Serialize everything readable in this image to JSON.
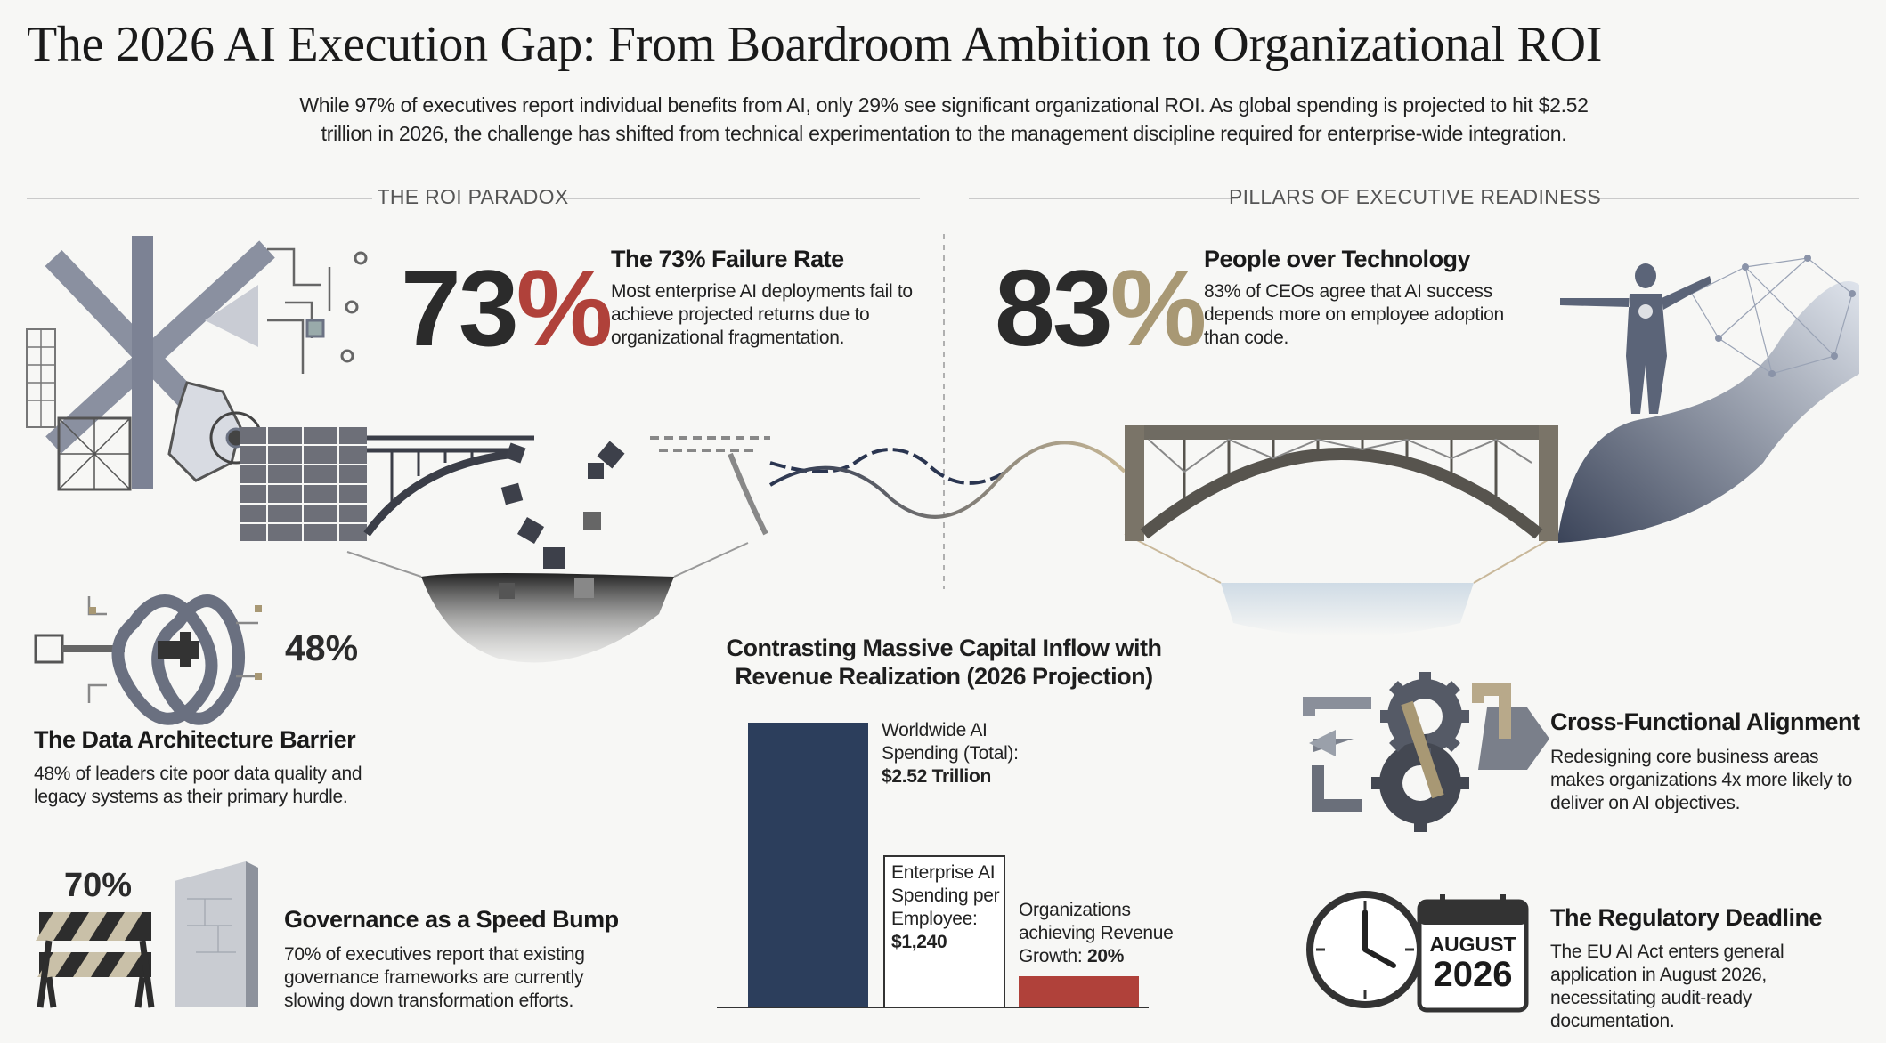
{
  "header": {
    "title": "The 2026 AI Execution Gap: From Boardroom Ambition to Organizational ROI",
    "subtitle": "While 97% of executives report individual benefits from AI, only 29% see significant organizational ROI. As global spending is projected to hit $2.52 trillion in 2026, the challenge has shifted from technical experimentation to the management discipline required for enterprise-wide integration."
  },
  "sections": [
    "THE ROI PARADOX",
    "PILLARS OF EXECUTIVE READINESS"
  ],
  "failure": {
    "number": "73",
    "unit": "%",
    "title": "The 73% Failure Rate",
    "text": "Most enterprise AI deployments fail to achieve projected returns due to organizational fragmentation."
  },
  "people": {
    "number": "83",
    "unit": "%",
    "title": "People over Technology",
    "text": "83% of CEOs agree that AI success depends more on employee adoption than code."
  },
  "data_barrier": {
    "stat": "48%",
    "title": "The Data Architecture Barrier",
    "text": "48% of leaders cite poor data quality and legacy systems as their primary hurdle."
  },
  "governance": {
    "stat": "70%",
    "title": "Governance as a Speed Bump",
    "text": "70% of executives report that existing governance frameworks are currently slowing down transformation efforts."
  },
  "chart": {
    "title": "Contrasting Massive Capital Inflow with Revenue Realization (2026 Projection)",
    "bars": [
      {
        "label": "Worldwide AI Spending (Total):",
        "value": "$2.52 Trillion"
      },
      {
        "label": "Enterprise AI Spending per Employee:",
        "value": "$1,240"
      },
      {
        "label": "Organizations achieving Revenue Growth:",
        "value": "20%"
      }
    ]
  },
  "alignment": {
    "title": "Cross-Functional Alignment",
    "text": "Redesigning core business areas makes organizations 4x more likely to deliver on AI objectives."
  },
  "regulatory": {
    "title": "The Regulatory Deadline",
    "text": "The EU AI Act enters general application in August 2026, necessitating audit-ready documentation.",
    "calendar_month": "AUGUST",
    "calendar_year": "2026"
  }
}
